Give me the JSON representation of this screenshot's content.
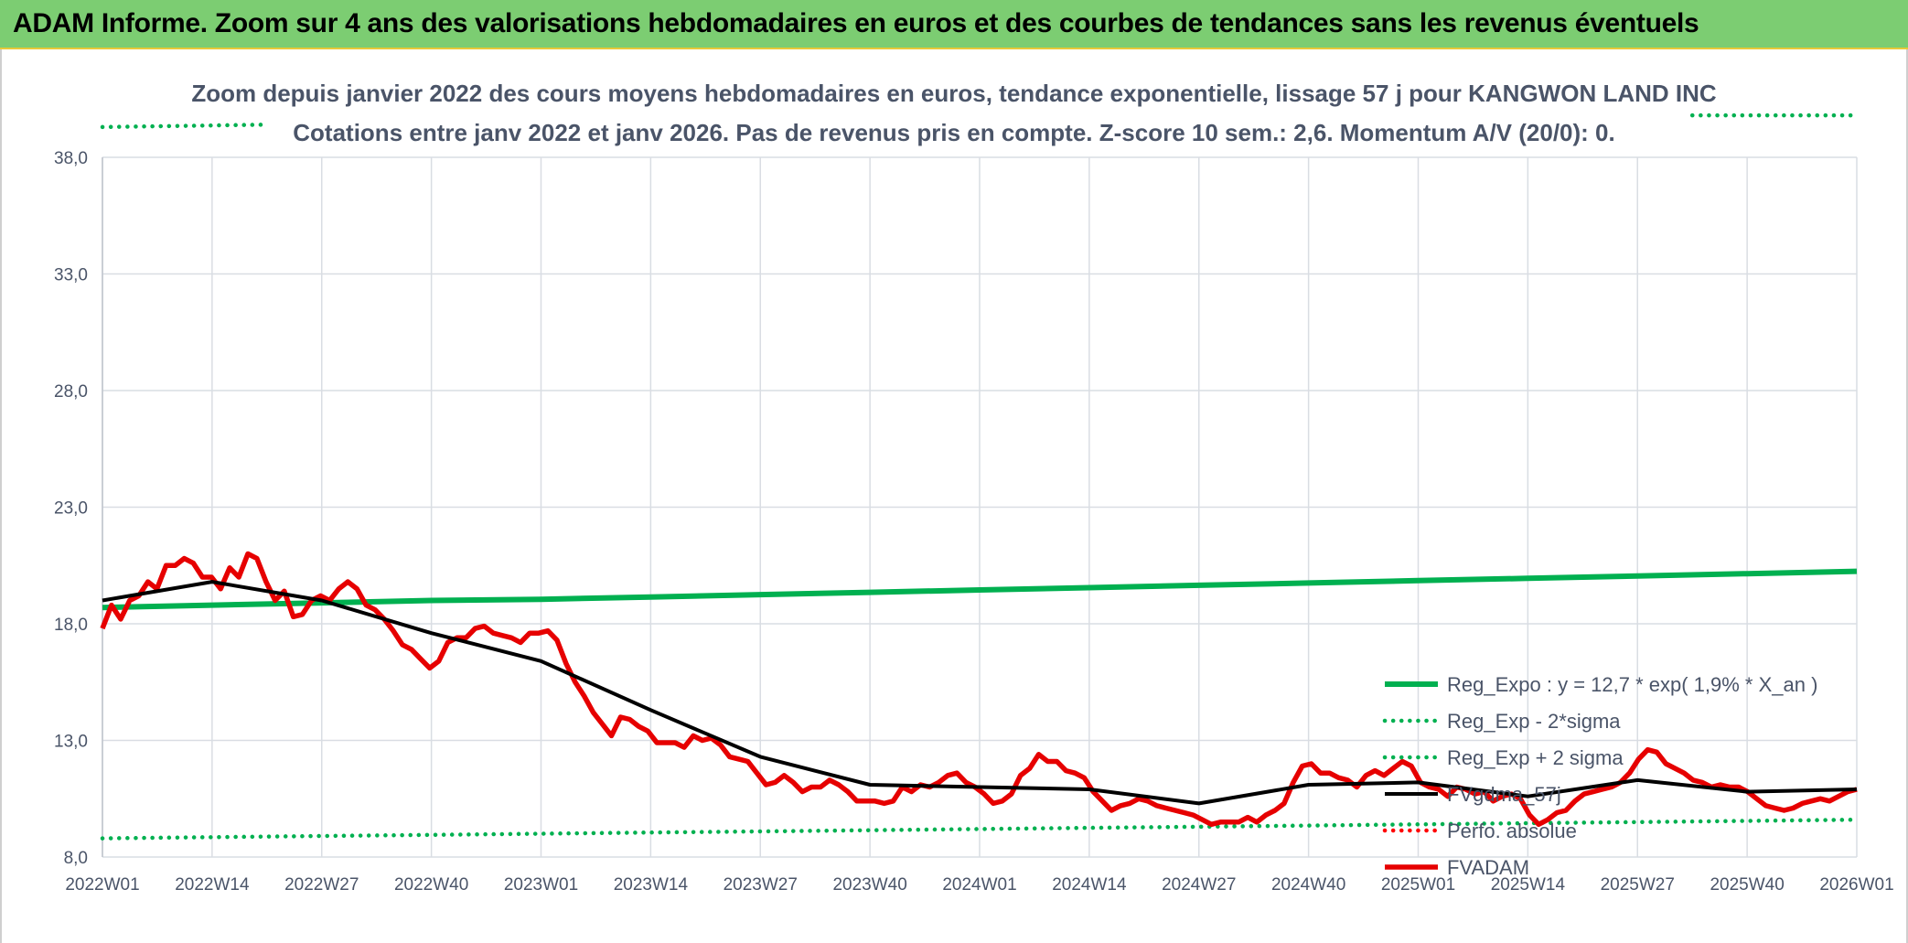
{
  "header": {
    "title": "ADAM Informe. Zoom sur 4 ans des valorisations hebdomadaires en euros et des courbes de tendances sans les revenus éventuels"
  },
  "colors": {
    "header_bg": "#7ccd72",
    "reg_expo": "#00b050",
    "fvgdma": "#000000",
    "perfo": "#ff0000",
    "fvadam": "#e60000",
    "grid": "#d9dde3",
    "text": "#4a5468"
  },
  "chart_data": {
    "type": "line",
    "title_line1": "Zoom depuis janvier 2022 des cours moyens hebdomadaires en euros, tendance exponentielle, lissage 57 j pour KANGWON LAND INC",
    "title_line2": "Cotations entre janv 2022 et janv 2026. Pas de revenus pris en compte. Z-score 10 sem.: 2,6. Momentum A/V (20/0): 0.",
    "ylim": [
      8,
      38
    ],
    "yticks": [
      "8,0",
      "13,0",
      "18,0",
      "23,0",
      "28,0",
      "33,0",
      "38,0"
    ],
    "ytick_values": [
      8,
      13,
      18,
      23,
      28,
      33,
      38
    ],
    "xticks": [
      "2022W01",
      "2022W14",
      "2022W27",
      "2022W40",
      "2023W01",
      "2023W14",
      "2023W27",
      "2023W40",
      "2024W01",
      "2024W14",
      "2024W27",
      "2024W40",
      "2025W01",
      "2025W14",
      "2025W27",
      "2025W40",
      "2026W01"
    ],
    "legend_position": "right",
    "grid": true,
    "series": [
      {
        "name": "Reg_Expo : y = 12,7 * exp( 1,9% *  X_an )",
        "style": "solid-thick",
        "color": "#00b050",
        "values": [
          18.7,
          18.8,
          18.9,
          19.0,
          19.05,
          19.15,
          19.25,
          19.35,
          19.45,
          19.55,
          19.65,
          19.75,
          19.85,
          19.95,
          20.05,
          20.15,
          20.25
        ]
      },
      {
        "name": "Reg_Exp - 2*sigma",
        "style": "dotted",
        "color": "#00b050",
        "values": [
          8.8,
          8.85,
          8.9,
          8.95,
          9.0,
          9.05,
          9.1,
          9.15,
          9.2,
          9.25,
          9.3,
          9.35,
          9.4,
          9.45,
          9.5,
          9.55,
          9.6
        ]
      },
      {
        "name": "Reg_Exp + 2 sigma",
        "style": "dotted",
        "color": "#00b050",
        "segments": [
          {
            "x": [
              0,
              1.5
            ],
            "values": [
              39.3,
              39.4
            ]
          },
          {
            "x": [
              14.5,
              16
            ],
            "values": [
              39.8,
              39.8
            ]
          }
        ]
      },
      {
        "name": "FVgdma_57j",
        "style": "solid",
        "color": "#000000",
        "values": [
          19.0,
          19.8,
          19.0,
          17.6,
          16.4,
          14.3,
          12.3,
          11.1,
          11.0,
          10.9,
          10.3,
          11.1,
          11.2,
          10.6,
          11.3,
          10.8,
          10.9
        ]
      },
      {
        "name": "Perfo. absolue",
        "style": "dotted",
        "color": "#ff0000",
        "values": []
      },
      {
        "name": "FVADAM",
        "style": "solid-thick",
        "color": "#e60000",
        "values": [
          17.8,
          18.8,
          18.2,
          19.0,
          19.2,
          19.8,
          19.5,
          20.5,
          20.5,
          20.8,
          20.6,
          20.0,
          20.0,
          19.5,
          20.4,
          20.0,
          21.0,
          20.8,
          19.8,
          19.0,
          19.4,
          18.3,
          18.4,
          19.0,
          19.2,
          19.0,
          19.5,
          19.8,
          19.5,
          18.8,
          18.6,
          18.2,
          17.7,
          17.1,
          16.9,
          16.5,
          16.1,
          16.4,
          17.2,
          17.4,
          17.4,
          17.8,
          17.9,
          17.6,
          17.5,
          17.4,
          17.2,
          17.6,
          17.6,
          17.7,
          17.3,
          16.3,
          15.5,
          14.9,
          14.2,
          13.7,
          13.2,
          14.0,
          13.9,
          13.6,
          13.4,
          12.9,
          12.9,
          12.9,
          12.7,
          13.2,
          13.0,
          13.1,
          12.8,
          12.3,
          12.2,
          12.1,
          11.6,
          11.1,
          11.2,
          11.5,
          11.2,
          10.8,
          11.0,
          11.0,
          11.3,
          11.1,
          10.8,
          10.4,
          10.4,
          10.4,
          10.3,
          10.4,
          11.0,
          10.8,
          11.1,
          11.0,
          11.2,
          11.5,
          11.6,
          11.2,
          11.0,
          10.7,
          10.3,
          10.4,
          10.7,
          11.5,
          11.8,
          12.4,
          12.1,
          12.1,
          11.7,
          11.6,
          11.4,
          10.8,
          10.4,
          10.0,
          10.2,
          10.3,
          10.5,
          10.4,
          10.2,
          10.1,
          10.0,
          9.9,
          9.8,
          9.6,
          9.4,
          9.5,
          9.5,
          9.5,
          9.7,
          9.5,
          9.8,
          10.0,
          10.3,
          11.2,
          11.9,
          12.0,
          11.6,
          11.6,
          11.4,
          11.3,
          11.0,
          11.5,
          11.7,
          11.5,
          11.8,
          12.1,
          11.9,
          11.2,
          11.0,
          10.9,
          10.6,
          11.0,
          10.9,
          10.7,
          10.8,
          10.4,
          10.6,
          10.7,
          10.5,
          9.8,
          9.4,
          9.6,
          9.9,
          10.0,
          10.4,
          10.7,
          10.8,
          10.9,
          11.0,
          11.2,
          11.6,
          12.2,
          12.6,
          12.5,
          12.0,
          11.8,
          11.6,
          11.3,
          11.2,
          11.0,
          11.1,
          11.0,
          11.0,
          10.8,
          10.5,
          10.2,
          10.1,
          10.0,
          10.1,
          10.3,
          10.4,
          10.5,
          10.4,
          10.6,
          10.8,
          10.9
        ]
      }
    ]
  }
}
